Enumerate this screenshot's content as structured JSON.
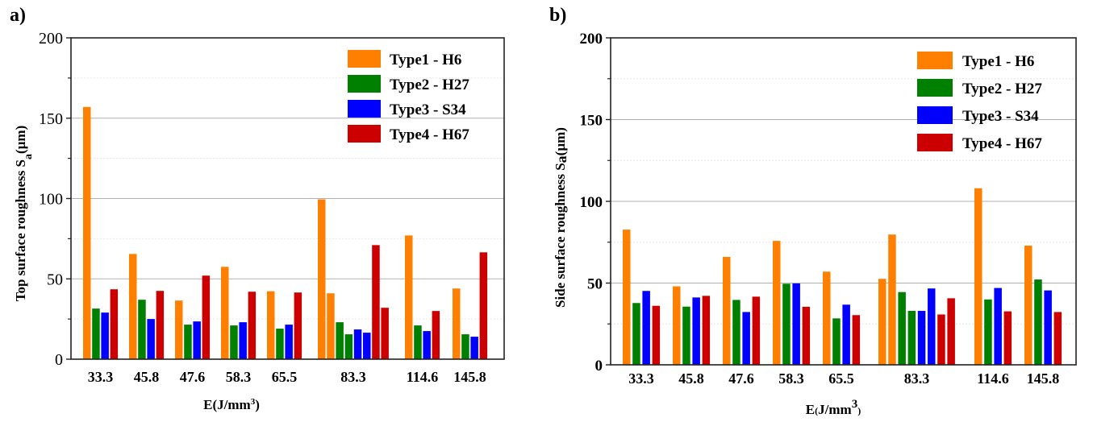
{
  "chart_data": [
    {
      "type": "bar",
      "panel_label": "a)",
      "title": "",
      "xlabel": "E(J/mm",
      "xlabel_sup": "3",
      "xlabel_end": ")",
      "ylabel": "Top surface roughness S",
      "ylabel_sub": "a",
      "ylabel_end": "(µm)",
      "ylim": [
        0,
        200
      ],
      "yticks": [
        0,
        50,
        100,
        150,
        200
      ],
      "minor_yticks": [
        25,
        75,
        125,
        175
      ],
      "grid": true,
      "legend_position": "top-right",
      "categories": [
        "33.3",
        "45.8",
        "47.6",
        "58.3",
        "65.5",
        "83.3",
        "114.6",
        "145.8"
      ],
      "series": [
        {
          "name": "Type1 - H6",
          "color": "#FF8000",
          "values": [
            [
              157
            ],
            [
              65.5
            ],
            [
              36.5
            ],
            [
              57.5
            ],
            [
              42.3
            ],
            [
              99.5,
              41
            ],
            [
              77
            ],
            [
              44
            ]
          ]
        },
        {
          "name": "Type2 - H27",
          "color": "#008000",
          "values": [
            [
              31.5
            ],
            [
              37
            ],
            [
              21.5
            ],
            [
              21
            ],
            [
              19
            ],
            [
              23,
              15.5
            ],
            [
              21
            ],
            [
              15.5
            ]
          ]
        },
        {
          "name": "Type3 - S34",
          "color": "#0000FF",
          "values": [
            [
              29
            ],
            [
              25
            ],
            [
              23.5
            ],
            [
              23
            ],
            [
              21.5
            ],
            [
              18.5,
              16.5
            ],
            [
              17.5
            ],
            [
              14
            ]
          ]
        },
        {
          "name": "Type4 - H67",
          "color": "#CC0000",
          "values": [
            [
              43.5
            ],
            [
              42.5
            ],
            [
              52
            ],
            [
              42
            ],
            [
              41.5
            ],
            [
              71,
              32
            ],
            [
              30
            ],
            [
              66.5
            ]
          ]
        }
      ]
    },
    {
      "type": "bar",
      "panel_label": "b)",
      "title": "",
      "xlabel": "E",
      "xlabel_paren": "(",
      "xlabel_mid": "J/mm",
      "xlabel_sup": "3",
      "xlabel_end": ")",
      "ylabel": "Side surface roughness S",
      "ylabel_sub": "a",
      "ylabel_end": "(µm)",
      "ylim": [
        0,
        200
      ],
      "yticks": [
        0,
        50,
        100,
        150,
        200
      ],
      "minor_yticks": [
        25,
        75,
        125,
        175
      ],
      "grid": true,
      "legend_position": "top-right",
      "categories": [
        "33.3",
        "45.8",
        "47.6",
        "58.3",
        "65.5",
        "83.3",
        "114.6",
        "145.8"
      ],
      "series": [
        {
          "name": "Type1 - H6",
          "color": "#FF8000",
          "values": [
            [
              82.7
            ],
            [
              48
            ],
            [
              66
            ],
            [
              75.8
            ],
            [
              57
            ],
            [
              52.6,
              79.7
            ],
            [
              108
            ],
            [
              72.9
            ]
          ]
        },
        {
          "name": "Type2 - H27",
          "color": "#008000",
          "values": [
            [
              37.8
            ],
            [
              35.6
            ],
            [
              39.7
            ],
            [
              49.6
            ],
            [
              28.4
            ],
            [
              44.5,
              33
            ],
            [
              40
            ],
            [
              52.2
            ]
          ]
        },
        {
          "name": "Type3 - S34",
          "color": "#0000FF",
          "values": [
            [
              45.2
            ],
            [
              41.2
            ],
            [
              32.3
            ],
            [
              49.8
            ],
            [
              36.8
            ],
            [
              33,
              46.7
            ],
            [
              47
            ],
            [
              45.5
            ]
          ]
        },
        {
          "name": "Type4 - H67",
          "color": "#CC0000",
          "values": [
            [
              36.1
            ],
            [
              42.2
            ],
            [
              41.7
            ],
            [
              35.5
            ],
            [
              30.4
            ],
            [
              30.8,
              40.7
            ],
            [
              32.7
            ],
            [
              32.3
            ]
          ]
        }
      ]
    }
  ]
}
